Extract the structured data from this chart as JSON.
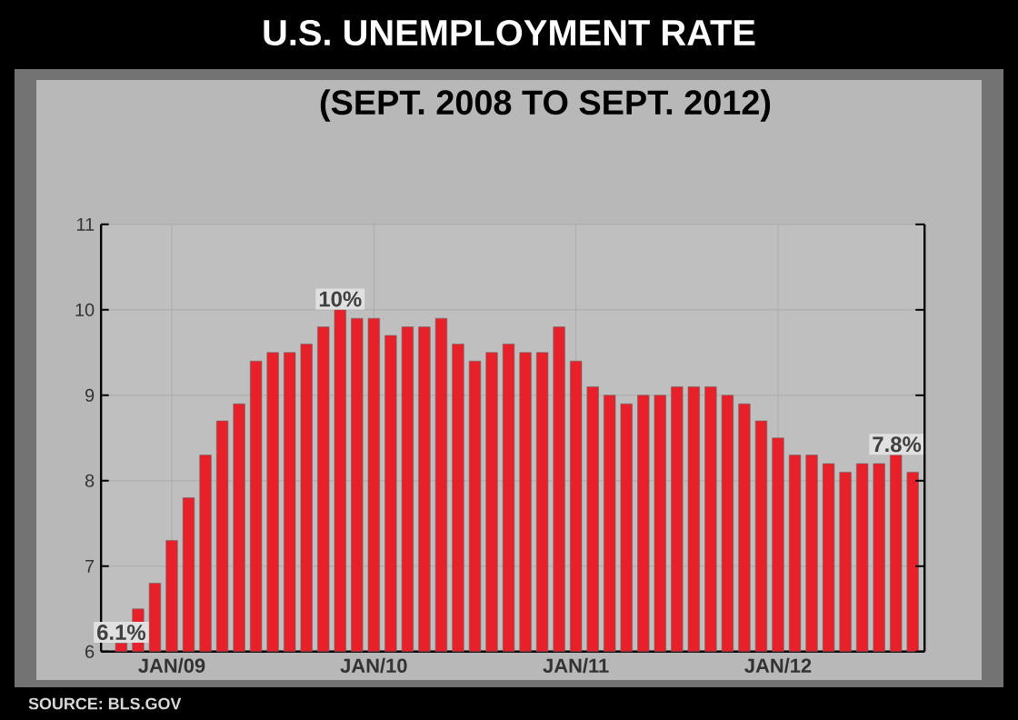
{
  "chart_data": {
    "type": "bar",
    "title": "U.S. UNEMPLOYMENT RATE",
    "subtitle": "(SEPT. 2008 TO SEPT. 2012)",
    "categories": [
      null,
      null,
      null,
      "JAN/09",
      null,
      null,
      null,
      null,
      null,
      null,
      null,
      null,
      null,
      null,
      null,
      "JAN/10",
      null,
      null,
      null,
      null,
      null,
      null,
      null,
      null,
      null,
      null,
      null,
      "JAN/11",
      null,
      null,
      null,
      null,
      null,
      null,
      null,
      null,
      null,
      null,
      null,
      "JAN/12",
      null,
      null,
      null,
      null,
      null,
      null,
      null,
      null
    ],
    "values": [
      6.1,
      6.5,
      6.8,
      7.3,
      7.8,
      8.3,
      8.7,
      8.9,
      9.4,
      9.5,
      9.5,
      9.6,
      9.8,
      10.0,
      9.9,
      9.9,
      9.7,
      9.8,
      9.8,
      9.9,
      9.6,
      9.4,
      9.5,
      9.6,
      9.5,
      9.5,
      9.8,
      9.4,
      9.1,
      9.0,
      8.9,
      9.0,
      9.0,
      9.1,
      9.1,
      9.1,
      9.0,
      8.9,
      8.7,
      8.5,
      8.3,
      8.3,
      8.2,
      8.1,
      8.2,
      8.2,
      8.3,
      8.1
    ],
    "value_labels": [
      "6.1%",
      null,
      null,
      null,
      null,
      null,
      null,
      null,
      null,
      null,
      null,
      null,
      null,
      "10%",
      null,
      null,
      null,
      null,
      null,
      null,
      null,
      null,
      null,
      null,
      null,
      null,
      null,
      null,
      null,
      null,
      null,
      null,
      null,
      null,
      null,
      null,
      null,
      null,
      null,
      null,
      null,
      null,
      null,
      null,
      null,
      null,
      null,
      null
    ],
    "color": "#e8202a",
    "ylim": [
      6,
      11
    ],
    "yticks": [
      6,
      7,
      8,
      9,
      10,
      11
    ],
    "grid": true,
    "annotations": [
      "7.8%",
      "SOURCE: BLS.GOV"
    ]
  }
}
